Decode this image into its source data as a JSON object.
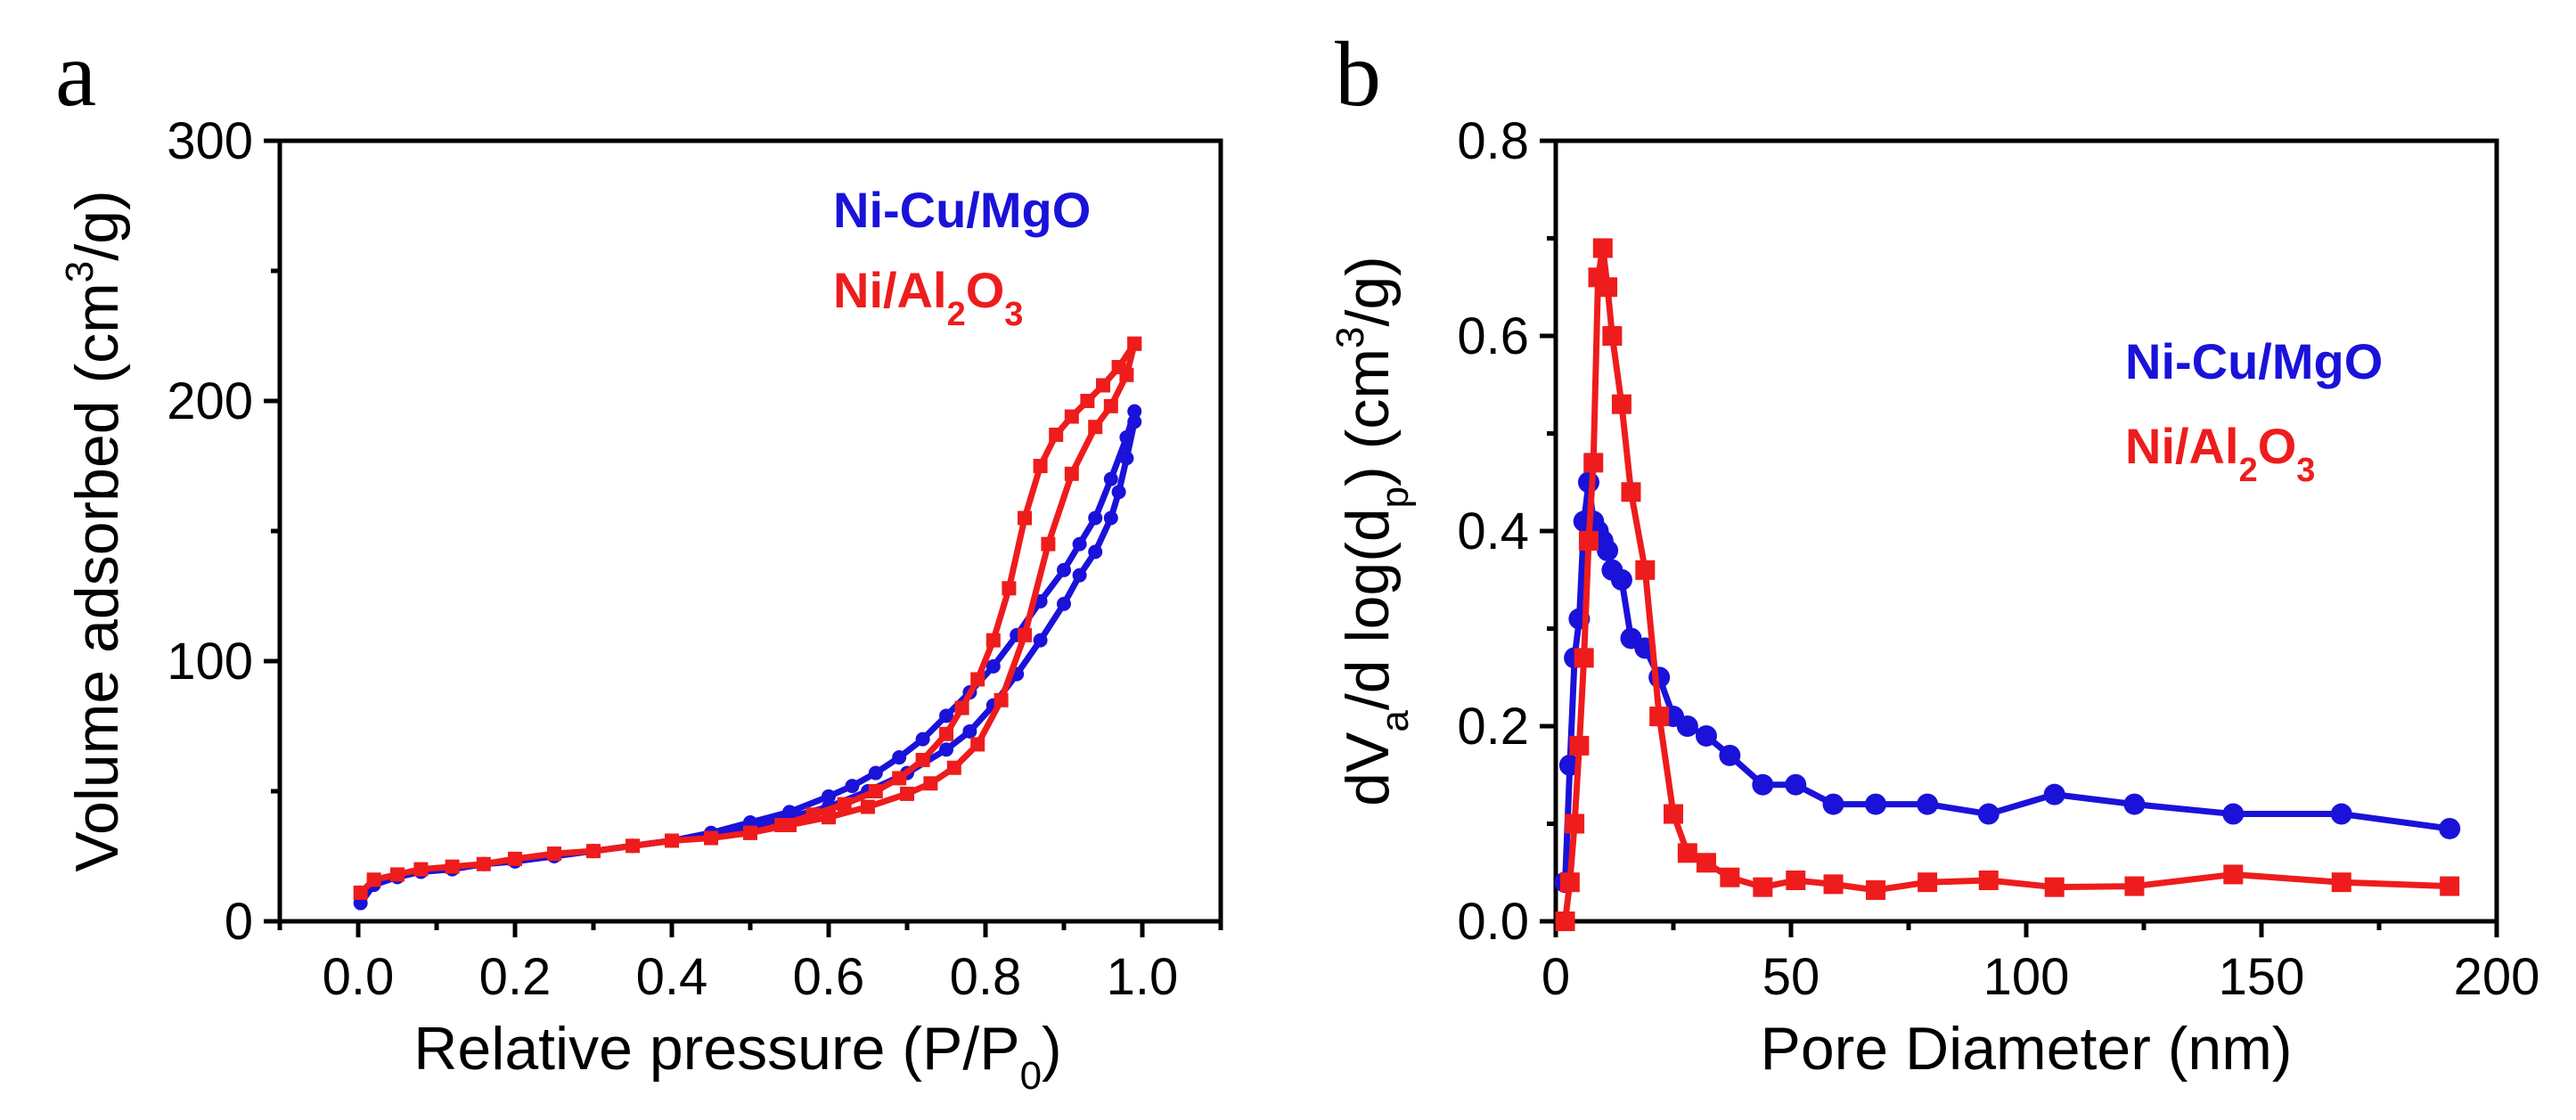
{
  "chart_data": [
    {
      "type": "line",
      "panel_label": "a",
      "xlabel": "Relative pressure (P/P",
      "xlabel_sub": "0",
      "xlabel_end": ")",
      "ylabel": "Volume adsorbed (cm",
      "ylabel_sup": "3",
      "ylabel_end": "/g)",
      "xlim": [
        -0.1,
        1.1
      ],
      "ylim": [
        0,
        300
      ],
      "xticks": [
        0.0,
        0.2,
        0.4,
        0.6,
        0.8,
        1.0
      ],
      "xtick_labels": [
        "0.0",
        "0.2",
        "0.4",
        "0.6",
        "0.8",
        "1.0"
      ],
      "yticks": [
        0,
        100,
        200,
        300
      ],
      "ytick_labels": [
        "0",
        "100",
        "200",
        "300"
      ],
      "legend": [
        {
          "text": "Ni-Cu/MgO",
          "color": "#1a12d9"
        },
        {
          "text": "Ni/Al",
          "sub": "2",
          "mid": "O",
          "sub2": "3",
          "color": "#ee1c1c"
        }
      ],
      "series": [
        {
          "name": "Ni-Cu/MgO adsorption",
          "color": "#1a12d9",
          "marker": "circle",
          "x": [
            0.003,
            0.02,
            0.05,
            0.08,
            0.12,
            0.16,
            0.2,
            0.25,
            0.3,
            0.35,
            0.4,
            0.45,
            0.5,
            0.55,
            0.6,
            0.65,
            0.7,
            0.75,
            0.78,
            0.81,
            0.84,
            0.87,
            0.9,
            0.92,
            0.94,
            0.96,
            0.97,
            0.98,
            0.99
          ],
          "y": [
            7,
            14,
            17,
            19,
            20,
            22,
            23,
            25,
            27,
            29,
            31,
            33,
            36,
            40,
            44,
            50,
            57,
            66,
            73,
            83,
            95,
            108,
            122,
            133,
            142,
            155,
            165,
            178,
            192
          ]
        },
        {
          "name": "Ni-Cu/MgO desorption",
          "color": "#1a12d9",
          "marker": "circle",
          "x": [
            0.99,
            0.98,
            0.96,
            0.94,
            0.92,
            0.9,
            0.87,
            0.84,
            0.81,
            0.78,
            0.75,
            0.72,
            0.69,
            0.66,
            0.63,
            0.6,
            0.55,
            0.5,
            0.45,
            0.4,
            0.35,
            0.3
          ],
          "y": [
            196,
            186,
            170,
            155,
            145,
            135,
            123,
            110,
            98,
            88,
            79,
            70,
            63,
            57,
            52,
            48,
            42,
            38,
            34,
            31,
            29,
            27
          ]
        },
        {
          "name": "Ni/Al2O3 adsorption",
          "color": "#ee1c1c",
          "marker": "square",
          "x": [
            0.003,
            0.02,
            0.05,
            0.08,
            0.12,
            0.16,
            0.2,
            0.25,
            0.3,
            0.35,
            0.4,
            0.45,
            0.5,
            0.55,
            0.6,
            0.65,
            0.7,
            0.73,
            0.76,
            0.79,
            0.82,
            0.85,
            0.88,
            0.91,
            0.94,
            0.96,
            0.98,
            0.99
          ],
          "y": [
            11,
            16,
            18,
            20,
            21,
            22,
            24,
            26,
            27,
            29,
            31,
            32,
            34,
            37,
            40,
            44,
            49,
            53,
            59,
            68,
            85,
            110,
            145,
            172,
            190,
            198,
            210,
            222
          ]
        },
        {
          "name": "Ni/Al2O3 desorption",
          "color": "#ee1c1c",
          "marker": "square",
          "x": [
            0.99,
            0.97,
            0.95,
            0.93,
            0.91,
            0.89,
            0.87,
            0.85,
            0.83,
            0.81,
            0.79,
            0.77,
            0.75,
            0.72,
            0.69,
            0.66,
            0.62,
            0.58,
            0.54,
            0.5
          ],
          "y": [
            222,
            213,
            206,
            200,
            194,
            187,
            175,
            155,
            128,
            108,
            93,
            82,
            72,
            62,
            55,
            50,
            45,
            41,
            37,
            34
          ]
        }
      ]
    },
    {
      "type": "line",
      "panel_label": "b",
      "xlabel": "Pore Diameter (nm)",
      "ylabel_parts": [
        "dV",
        "a",
        "/d log(d",
        "p",
        ") (cm",
        "3",
        "/g)"
      ],
      "xlim": [
        0,
        200
      ],
      "ylim": [
        0,
        0.8
      ],
      "xticks": [
        0,
        50,
        100,
        150,
        200
      ],
      "xtick_labels": [
        "0",
        "50",
        "100",
        "150",
        "200"
      ],
      "yticks": [
        0.0,
        0.2,
        0.4,
        0.6,
        0.8
      ],
      "ytick_labels": [
        "0.0",
        "0.2",
        "0.4",
        "0.6",
        "0.8"
      ],
      "legend": [
        {
          "text": "Ni-Cu/MgO",
          "color": "#1a12d9"
        },
        {
          "text": "Ni/Al",
          "sub": "2",
          "mid": "O",
          "sub2": "3",
          "color": "#ee1c1c"
        }
      ],
      "series": [
        {
          "name": "Ni-Cu/MgO",
          "color": "#1a12d9",
          "marker": "circle",
          "x": [
            2,
            3,
            4,
            5,
            6,
            7,
            8,
            9,
            10,
            11,
            12,
            14,
            16,
            19,
            22,
            25,
            28,
            32,
            37,
            44,
            51,
            59,
            68,
            79,
            92,
            106,
            123,
            144,
            167,
            190
          ],
          "y": [
            0.04,
            0.16,
            0.27,
            0.31,
            0.41,
            0.45,
            0.41,
            0.4,
            0.39,
            0.38,
            0.36,
            0.35,
            0.29,
            0.28,
            0.25,
            0.21,
            0.2,
            0.19,
            0.17,
            0.14,
            0.14,
            0.12,
            0.12,
            0.12,
            0.11,
            0.13,
            0.12,
            0.11,
            0.11,
            0.095
          ]
        },
        {
          "name": "Ni/Al2O3",
          "color": "#ee1c1c",
          "marker": "square",
          "x": [
            2,
            3,
            4,
            5,
            6,
            7,
            8,
            9,
            10,
            11,
            12,
            14,
            16,
            19,
            22,
            25,
            28,
            32,
            37,
            44,
            51,
            59,
            68,
            79,
            92,
            106,
            123,
            144,
            167,
            190
          ],
          "y": [
            0.0,
            0.04,
            0.1,
            0.18,
            0.27,
            0.39,
            0.47,
            0.66,
            0.69,
            0.65,
            0.6,
            0.53,
            0.44,
            0.36,
            0.21,
            0.11,
            0.07,
            0.06,
            0.045,
            0.035,
            0.042,
            0.038,
            0.032,
            0.04,
            0.042,
            0.035,
            0.036,
            0.048,
            0.04,
            0.036
          ]
        }
      ]
    }
  ]
}
